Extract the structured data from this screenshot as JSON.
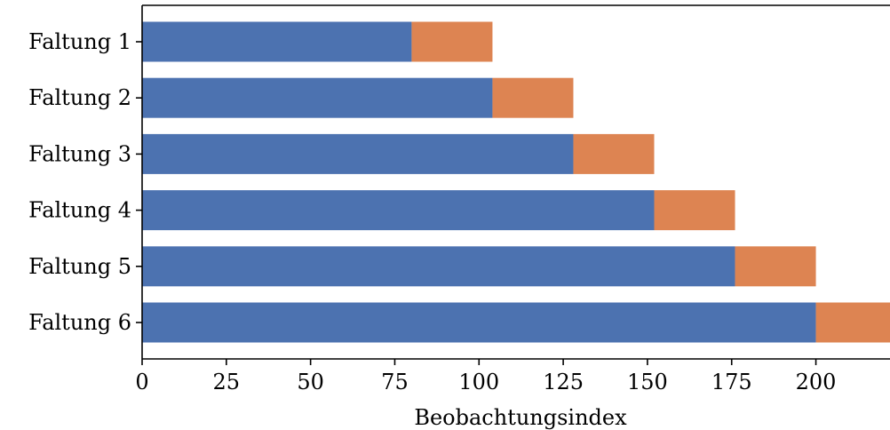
{
  "chart_data": {
    "type": "bar",
    "orientation": "horizontal",
    "stacked": true,
    "categories": [
      "Faltung 1",
      "Faltung 2",
      "Faltung 3",
      "Faltung 4",
      "Faltung 5",
      "Faltung 6"
    ],
    "series": [
      {
        "values": [
          80,
          104,
          128,
          152,
          176,
          200
        ],
        "color": "#4c72b0"
      },
      {
        "values": [
          24,
          24,
          24,
          24,
          24,
          24
        ],
        "color": "#dd8452"
      }
    ],
    "xlabel": "Beobachtungsindex",
    "ylabel": "",
    "xlim": [
      0,
      222
    ],
    "xticks": [
      0,
      25,
      50,
      75,
      100,
      125,
      150,
      175,
      200
    ],
    "grid": false,
    "legend": "none"
  }
}
